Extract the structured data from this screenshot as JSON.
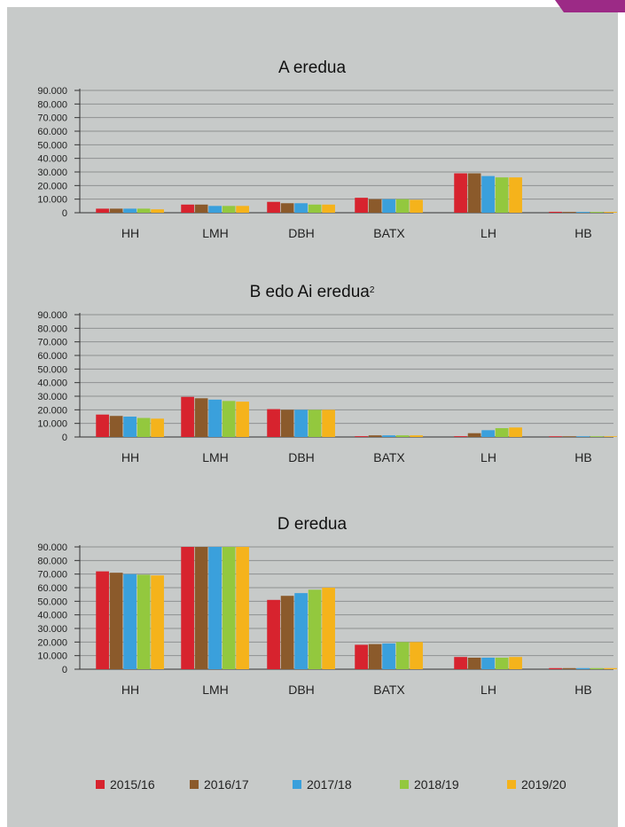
{
  "colors": {
    "panel": "#c7cac9",
    "accent": "#9c2a86",
    "axis": "#333333",
    "grid": "#8e9090"
  },
  "legend": [
    {
      "label": "2015/16",
      "color": "#d7232e"
    },
    {
      "label": "2016/17",
      "color": "#8b5a2b"
    },
    {
      "label": "2017/18",
      "color": "#3aa0dc"
    },
    {
      "label": "2018/19",
      "color": "#93c83e"
    },
    {
      "label": "2019/20",
      "color": "#f5b31b"
    }
  ],
  "chart_data": [
    {
      "type": "bar",
      "title": "A eredua",
      "categories": [
        "HH",
        "LMH",
        "DBH",
        "BATX",
        "LH",
        "HB"
      ],
      "ylim": [
        0,
        90000
      ],
      "yticks": [
        "0",
        "10.000",
        "20.000",
        "30.000",
        "40.000",
        "50.000",
        "60.000",
        "70.000",
        "80.000",
        "90.000"
      ],
      "grid": true,
      "series": [
        {
          "name": "2015/16",
          "values": [
            3000,
            6000,
            8000,
            11000,
            29000,
            700
          ]
        },
        {
          "name": "2016/17",
          "values": [
            3000,
            6000,
            7000,
            10000,
            29000,
            600
          ]
        },
        {
          "name": "2017/18",
          "values": [
            3000,
            5000,
            7000,
            10000,
            27000,
            600
          ]
        },
        {
          "name": "2018/19",
          "values": [
            3000,
            5000,
            6000,
            10000,
            26000,
            600
          ]
        },
        {
          "name": "2019/20",
          "values": [
            2500,
            5000,
            6000,
            9500,
            26000,
            600
          ]
        }
      ]
    },
    {
      "type": "bar",
      "title": "B edo Ai eredua",
      "title_sup": "2",
      "categories": [
        "HH",
        "LMH",
        "DBH",
        "BATX",
        "LH",
        "HB"
      ],
      "ylim": [
        0,
        90000
      ],
      "yticks": [
        "0",
        "10.000",
        "20.000",
        "30.000",
        "40.000",
        "50.000",
        "60.000",
        "70.000",
        "80.000",
        "90.000"
      ],
      "grid": true,
      "series": [
        {
          "name": "2015/16",
          "values": [
            16500,
            29500,
            20500,
            600,
            600,
            500
          ]
        },
        {
          "name": "2016/17",
          "values": [
            15500,
            28500,
            20000,
            1200,
            2800,
            500
          ]
        },
        {
          "name": "2017/18",
          "values": [
            15000,
            27500,
            20000,
            1200,
            5000,
            500
          ]
        },
        {
          "name": "2018/19",
          "values": [
            14000,
            26500,
            20000,
            1200,
            6500,
            500
          ]
        },
        {
          "name": "2019/20",
          "values": [
            13500,
            26000,
            20000,
            1200,
            7000,
            500
          ]
        }
      ]
    },
    {
      "type": "bar",
      "title": "D eredua",
      "categories": [
        "HH",
        "LMH",
        "DBH",
        "BATX",
        "LH",
        "HB"
      ],
      "ylim": [
        0,
        90000
      ],
      "yticks": [
        "0",
        "10.000",
        "20.000",
        "30.000",
        "40.000",
        "50.000",
        "60.000",
        "70.000",
        "80.000",
        "90.000"
      ],
      "grid": true,
      "series": [
        {
          "name": "2015/16",
          "values": [
            72000,
            90000,
            51000,
            18000,
            9000,
            800
          ]
        },
        {
          "name": "2016/17",
          "values": [
            71000,
            90000,
            54000,
            18500,
            8500,
            800
          ]
        },
        {
          "name": "2017/18",
          "values": [
            70000,
            90000,
            56000,
            19000,
            8500,
            800
          ]
        },
        {
          "name": "2018/19",
          "values": [
            69500,
            90000,
            58500,
            20000,
            8500,
            800
          ]
        },
        {
          "name": "2019/20",
          "values": [
            69000,
            90000,
            60000,
            20000,
            9000,
            800
          ]
        }
      ]
    }
  ]
}
